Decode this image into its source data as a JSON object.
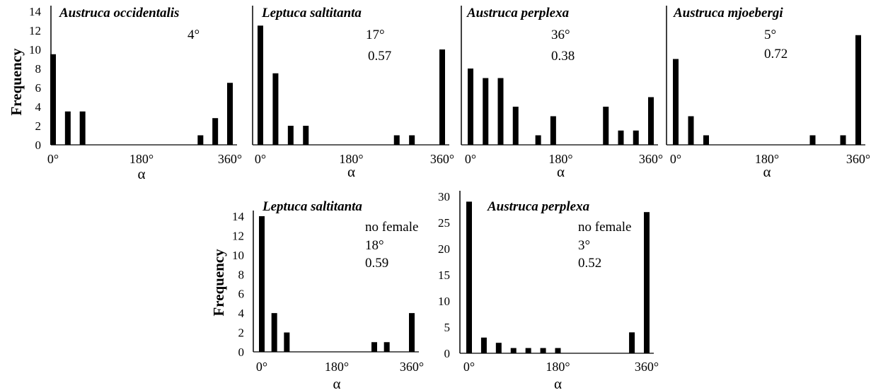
{
  "chart_data": [
    {
      "type": "bar",
      "title": "Austruca occidentalis",
      "annotations": [
        "4°"
      ],
      "xlabel": "α",
      "ylabel": "Frequency",
      "x_ticks": [
        "0°",
        "180°",
        "360°"
      ],
      "y_ticks": [
        "0",
        "2",
        "4",
        "6",
        "8",
        "10",
        "12",
        "14"
      ],
      "xlim": [
        0,
        360
      ],
      "ylim": [
        0,
        14
      ],
      "bars": [
        {
          "x": 0,
          "value": 9.5
        },
        {
          "x": 30,
          "value": 3.5
        },
        {
          "x": 60,
          "value": 3.5
        },
        {
          "x": 300,
          "value": 1
        },
        {
          "x": 330,
          "value": 2.8
        },
        {
          "x": 360,
          "value": 6.5
        }
      ]
    },
    {
      "type": "bar",
      "title": "Leptuca saltitanta",
      "annotations": [
        "17°",
        "0.57"
      ],
      "xlabel": "α",
      "ylabel": "",
      "x_ticks": [
        "0°",
        "180°",
        "360°"
      ],
      "y_ticks": [],
      "xlim": [
        0,
        360
      ],
      "ylim": [
        0,
        14
      ],
      "bars": [
        {
          "x": 0,
          "value": 12.5
        },
        {
          "x": 30,
          "value": 7.5
        },
        {
          "x": 60,
          "value": 2
        },
        {
          "x": 90,
          "value": 2
        },
        {
          "x": 270,
          "value": 1
        },
        {
          "x": 300,
          "value": 1
        },
        {
          "x": 360,
          "value": 10
        }
      ]
    },
    {
      "type": "bar",
      "title": "Austruca perplexa",
      "annotations": [
        "36°",
        "0.38"
      ],
      "xlabel": "α",
      "ylabel": "",
      "x_ticks": [
        "0°",
        "180°",
        "360°"
      ],
      "y_ticks": [],
      "xlim": [
        0,
        360
      ],
      "ylim": [
        0,
        14
      ],
      "bars": [
        {
          "x": 0,
          "value": 8
        },
        {
          "x": 30,
          "value": 7
        },
        {
          "x": 60,
          "value": 7
        },
        {
          "x": 90,
          "value": 4
        },
        {
          "x": 135,
          "value": 1
        },
        {
          "x": 165,
          "value": 3
        },
        {
          "x": 270,
          "value": 4
        },
        {
          "x": 300,
          "value": 1.5
        },
        {
          "x": 330,
          "value": 1.5
        },
        {
          "x": 360,
          "value": 5
        }
      ]
    },
    {
      "type": "bar",
      "title": "Austruca mjoebergi",
      "annotations": [
        "5°",
        "0.72"
      ],
      "xlabel": "α",
      "ylabel": "",
      "x_ticks": [
        "0°",
        "180°",
        "360°"
      ],
      "y_ticks": [],
      "xlim": [
        0,
        360
      ],
      "ylim": [
        0,
        14
      ],
      "bars": [
        {
          "x": 0,
          "value": 9
        },
        {
          "x": 30,
          "value": 3
        },
        {
          "x": 60,
          "value": 1
        },
        {
          "x": 270,
          "value": 1
        },
        {
          "x": 330,
          "value": 1
        },
        {
          "x": 360,
          "value": 11.5
        }
      ]
    },
    {
      "type": "bar",
      "title": "Leptuca saltitanta",
      "annotations": [
        "no female",
        "18°",
        "0.59"
      ],
      "xlabel": "α",
      "ylabel": "Frequency",
      "x_ticks": [
        "0°",
        "180°",
        "360°"
      ],
      "y_ticks": [
        "0",
        "2",
        "4",
        "6",
        "8",
        "10",
        "12",
        "14"
      ],
      "xlim": [
        0,
        360
      ],
      "ylim": [
        0,
        14
      ],
      "bars": [
        {
          "x": 0,
          "value": 14
        },
        {
          "x": 30,
          "value": 4
        },
        {
          "x": 60,
          "value": 2
        },
        {
          "x": 270,
          "value": 1
        },
        {
          "x": 300,
          "value": 1
        },
        {
          "x": 360,
          "value": 4
        }
      ]
    },
    {
      "type": "bar",
      "title": "Austruca perplexa",
      "annotations": [
        "no female",
        "3°",
        "0.52"
      ],
      "xlabel": "α",
      "ylabel": "",
      "x_ticks": [
        "0°",
        "180°",
        "360°"
      ],
      "y_ticks": [
        "0",
        "5",
        "10",
        "15",
        "20",
        "25",
        "30"
      ],
      "xlim": [
        0,
        360
      ],
      "ylim": [
        0,
        30
      ],
      "bars": [
        {
          "x": 0,
          "value": 29
        },
        {
          "x": 30,
          "value": 3
        },
        {
          "x": 60,
          "value": 2
        },
        {
          "x": 90,
          "value": 1
        },
        {
          "x": 120,
          "value": 1
        },
        {
          "x": 150,
          "value": 1
        },
        {
          "x": 180,
          "value": 1
        },
        {
          "x": 330,
          "value": 4
        },
        {
          "x": 360,
          "value": 27
        }
      ]
    }
  ]
}
